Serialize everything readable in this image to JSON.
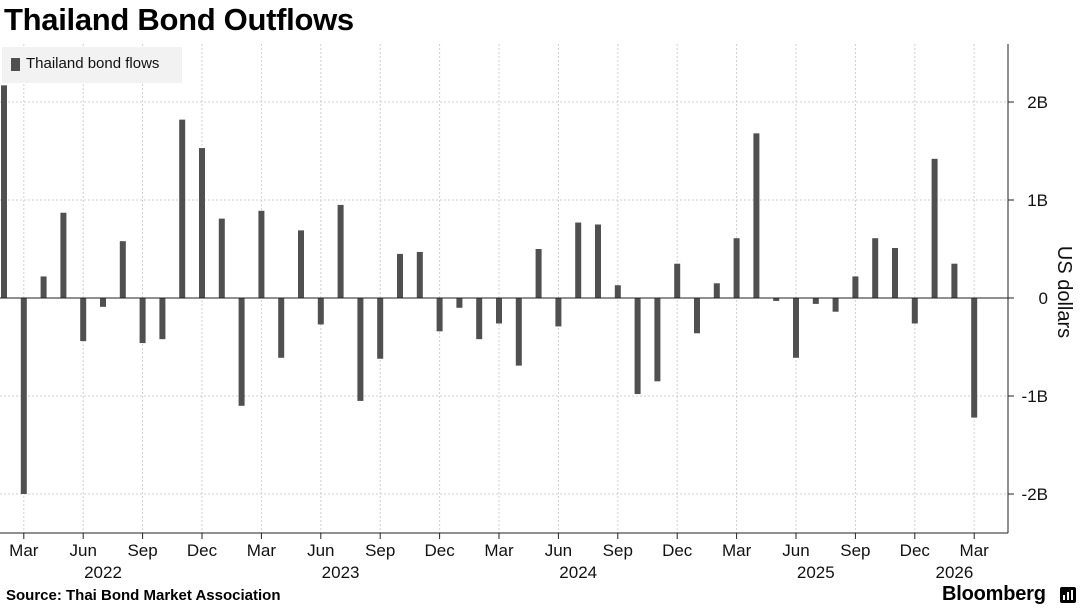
{
  "chart_data": {
    "type": "bar",
    "title": "Thailand Bond Outflows",
    "legend": {
      "label": "Thailand bond flows",
      "color": "#505050",
      "placement": "top-left"
    },
    "ylabel": "US dollars",
    "ylim": [
      -2.2,
      2.6
    ],
    "yticks": [
      {
        "value": 2,
        "label": "2B"
      },
      {
        "value": 1,
        "label": "1B"
      },
      {
        "value": 0,
        "label": "0"
      },
      {
        "value": -1,
        "label": "-1B"
      },
      {
        "value": -2,
        "label": "-2B"
      }
    ],
    "month_ticks": [
      {
        "index": 1,
        "label": "Mar"
      },
      {
        "index": 4,
        "label": "Jun"
      },
      {
        "index": 7,
        "label": "Sep"
      },
      {
        "index": 10,
        "label": "Dec"
      },
      {
        "index": 13,
        "label": "Mar"
      },
      {
        "index": 16,
        "label": "Jun"
      },
      {
        "index": 19,
        "label": "Sep"
      },
      {
        "index": 22,
        "label": "Dec"
      },
      {
        "index": 25,
        "label": "Mar"
      },
      {
        "index": 28,
        "label": "Jun"
      },
      {
        "index": 31,
        "label": "Sep"
      },
      {
        "index": 34,
        "label": "Dec"
      },
      {
        "index": 37,
        "label": "Mar"
      },
      {
        "index": 40,
        "label": "Jun"
      },
      {
        "index": 43,
        "label": "Sep"
      },
      {
        "index": 46,
        "label": "Dec"
      },
      {
        "index": 49,
        "label": "Mar"
      }
    ],
    "year_labels": [
      {
        "index": 5,
        "label": "2022"
      },
      {
        "index": 17,
        "label": "2023"
      },
      {
        "index": 29,
        "label": "2024"
      },
      {
        "index": 41,
        "label": "2025"
      },
      {
        "index": 48,
        "label": "2026"
      }
    ],
    "categories": [
      "Feb 2022",
      "Mar 2022",
      "Apr 2022",
      "May 2022",
      "Jun 2022",
      "Jul 2022",
      "Aug 2022",
      "Sep 2022",
      "Oct 2022",
      "Nov 2022",
      "Dec 2022",
      "Jan 2023",
      "Feb 2023",
      "Mar 2023",
      "Apr 2023",
      "May 2023",
      "Jun 2023",
      "Jul 2023",
      "Aug 2023",
      "Sep 2023",
      "Oct 2023",
      "Nov 2023",
      "Dec 2023",
      "Jan 2024",
      "Feb 2024",
      "Mar 2024",
      "Apr 2024",
      "May 2024",
      "Jun 2024",
      "Jul 2024",
      "Aug 2024",
      "Sep 2024",
      "Oct 2024",
      "Nov 2024",
      "Dec 2024",
      "Jan 2025",
      "Feb 2025",
      "Mar 2025",
      "Apr 2025",
      "May 2025",
      "Jun 2025",
      "Jul 2025",
      "Aug 2025",
      "Sep 2025",
      "Oct 2025",
      "Nov 2025",
      "Dec 2025",
      "Jan 2026",
      "Feb 2026",
      "Mar 2026"
    ],
    "series": [
      {
        "name": "Thailand bond flows",
        "unit": "billion USD",
        "values": [
          2.17,
          -2.0,
          0.22,
          0.87,
          -0.44,
          -0.09,
          0.58,
          -0.46,
          -0.42,
          1.82,
          1.53,
          0.81,
          -1.1,
          0.89,
          -0.61,
          0.69,
          -0.27,
          0.95,
          -1.05,
          -0.62,
          0.45,
          0.47,
          -0.34,
          -0.1,
          -0.42,
          -0.26,
          -0.69,
          0.5,
          -0.29,
          0.77,
          0.75,
          0.13,
          -0.98,
          -0.85,
          0.35,
          -0.36,
          0.15,
          0.61,
          1.68,
          -0.03,
          -0.61,
          -0.06,
          -0.14,
          0.22,
          0.61,
          0.51,
          -0.26,
          1.42,
          0.35,
          -1.22
        ]
      }
    ]
  },
  "source": "Source: Thai Bond Market Association",
  "brand": "Bloomberg"
}
